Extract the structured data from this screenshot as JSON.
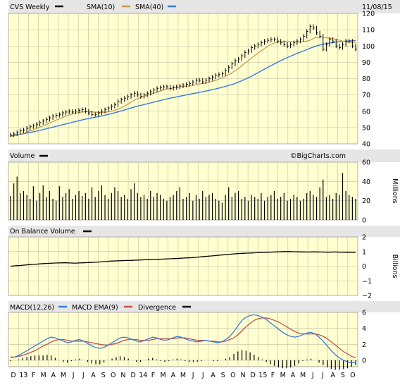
{
  "header": {
    "title": "CVS Weekly",
    "sma_fast": "SMA(10)",
    "sma_slow": "SMA(40)",
    "date": "11/08/15"
  },
  "colors": {
    "plot_bg": "#ffffd0",
    "header_bg": "#e6e6e6",
    "grid": "#bdbda2",
    "price": "#000000",
    "sma_fast": "#c8964b",
    "sma_slow": "#3b79e0",
    "macd": "#3b79e0",
    "signal": "#c0504d"
  },
  "panels": {
    "volume": {
      "title": "Volume",
      "unit": "Millions"
    },
    "obv": {
      "title": "On Balance Volume",
      "unit": "Billions"
    },
    "macd": {
      "title": "MACD(12,26)",
      "ema": "MACD EMA(9)",
      "divergence": "Divergence"
    }
  },
  "watermark": "©BigCharts.com",
  "chart_data": [
    {
      "type": "line",
      "title": "CVS Weekly",
      "ylim": [
        40,
        120
      ],
      "yticks": [
        40,
        50,
        60,
        70,
        80,
        90,
        100,
        110,
        120
      ],
      "series": [
        {
          "name": "Price",
          "values": [
            45.5,
            46,
            47,
            48,
            48.5,
            49.5,
            50.5,
            51,
            52,
            53,
            54,
            55,
            56,
            57,
            57.5,
            58,
            59,
            59.5,
            60,
            59.5,
            60,
            60.5,
            61,
            60,
            59,
            58,
            58,
            59,
            60,
            61,
            62,
            63,
            64,
            66,
            67,
            68,
            69,
            70,
            71,
            70,
            69,
            70,
            71,
            72,
            73,
            74,
            74.5,
            75,
            75,
            74,
            74.5,
            75,
            75.5,
            76,
            76.5,
            77,
            78,
            79,
            79,
            78,
            79,
            80,
            81,
            82,
            82.5,
            83,
            85,
            87,
            89,
            91,
            92,
            94,
            96,
            97,
            99,
            100,
            101,
            102,
            103,
            103.5,
            104,
            104,
            103,
            102,
            101,
            100,
            101,
            102,
            103,
            104,
            106,
            109,
            112,
            111,
            108,
            106,
            98,
            101,
            104,
            103,
            100,
            99,
            101,
            103,
            103,
            100,
            98
          ]
        },
        {
          "name": "SMA(10)",
          "values": [
            44.5,
            44.9,
            45.4,
            45.9,
            46.5,
            47.2,
            47.9,
            48.7,
            49.5,
            50.3,
            51.1,
            52,
            52.9,
            53.8,
            54.7,
            55.5,
            56.3,
            57.1,
            57.8,
            58.4,
            58.9,
            59.3,
            59.6,
            59.7,
            59.7,
            59.5,
            59.4,
            59.3,
            59.3,
            59.4,
            59.7,
            60.1,
            60.7,
            61.5,
            62.4,
            63.5,
            64.7,
            66,
            67.2,
            68,
            68.7,
            69.4,
            70.1,
            70.8,
            71.4,
            72,
            72.6,
            73.2,
            73.8,
            74.1,
            74.4,
            74.7,
            75,
            75.2,
            75.4,
            75.7,
            76.1,
            76.5,
            76.9,
            77.2,
            77.6,
            78.1,
            78.7,
            79.4,
            80.2,
            81,
            82,
            83.1,
            84.4,
            85.8,
            87.3,
            88.9,
            90.5,
            92.1,
            93.7,
            95.2,
            96.7,
            98.1,
            99.5,
            100.7,
            101.6,
            102.3,
            102.7,
            102.9,
            102.8,
            102.7,
            102.6,
            102.5,
            102.5,
            102.6,
            102.9,
            103.5,
            104.4,
            105.3,
            105.4,
            105.6,
            105.1,
            104.7,
            104.5,
            104.1,
            103.6,
            103,
            102.7,
            102.4,
            102.2,
            101.9
          ]
        },
        {
          "name": "SMA(40)",
          "values": [
            45,
            45.3,
            45.6,
            45.9,
            46.2,
            46.6,
            47,
            47.4,
            47.8,
            48.3,
            48.8,
            49.3,
            49.8,
            50.3,
            50.8,
            51.3,
            51.8,
            52.3,
            52.8,
            53.3,
            53.8,
            54.3,
            54.8,
            55.2,
            55.6,
            56,
            56.4,
            56.8,
            57.2,
            57.7,
            58.2,
            58.7,
            59.2,
            59.8,
            60.4,
            61,
            61.6,
            62.2,
            62.8,
            63.3,
            63.8,
            64.3,
            64.8,
            65.3,
            65.8,
            66.3,
            66.8,
            67.3,
            67.8,
            68.2,
            68.6,
            69,
            69.4,
            69.8,
            70.2,
            70.6,
            71,
            71.4,
            71.8,
            72.2,
            72.6,
            73,
            73.5,
            74,
            74.5,
            75,
            75.6,
            76.2,
            76.8,
            77.6,
            78.4,
            79.3,
            80.2,
            81.2,
            82.2,
            83.3,
            84.4,
            85.5,
            86.6,
            87.7,
            88.8,
            89.8,
            90.8,
            91.8,
            92.7,
            93.6,
            94.5,
            95.3,
            96.1,
            96.9,
            97.7,
            98.5,
            99.3,
            100,
            100.6,
            101.1,
            101.5,
            101.8,
            102.1,
            102.4,
            102.6,
            102.8,
            103,
            103.1,
            103.2,
            103.3
          ]
        }
      ]
    },
    {
      "type": "bar",
      "title": "Volume",
      "ylabel": "Millions",
      "ylim": [
        0,
        60
      ],
      "yticks": [
        0,
        20,
        40,
        60
      ],
      "values": [
        25,
        38,
        45,
        28,
        30,
        26,
        22,
        35,
        20,
        28,
        36,
        24,
        30,
        22,
        20,
        35,
        24,
        28,
        32,
        22,
        26,
        30,
        25,
        28,
        22,
        34,
        24,
        30,
        36,
        26,
        22,
        28,
        34,
        30,
        24,
        26,
        22,
        32,
        38,
        28,
        24,
        26,
        22,
        30,
        24,
        28,
        26,
        22,
        20,
        24,
        26,
        30,
        34,
        22,
        24,
        28,
        20,
        26,
        22,
        30,
        24,
        26,
        28,
        22,
        20,
        18,
        26,
        34,
        24,
        28,
        30,
        22,
        24,
        20,
        26,
        24,
        22,
        28,
        20,
        24,
        26,
        30,
        22,
        24,
        28,
        20,
        22,
        26,
        24,
        20,
        22,
        28,
        30,
        26,
        24,
        34,
        42,
        24,
        26,
        22,
        28,
        26,
        49,
        30,
        26,
        24,
        22
      ]
    },
    {
      "type": "line",
      "title": "On Balance Volume",
      "ylabel": "Billions",
      "ylim": [
        -2,
        2
      ],
      "yticks": [
        -2,
        -1,
        0,
        1,
        2
      ],
      "series": [
        {
          "name": "On Balance Volume",
          "values": [
            0,
            0.02,
            0.04,
            0.05,
            0.07,
            0.09,
            0.11,
            0.12,
            0.14,
            0.16,
            0.18,
            0.19,
            0.2,
            0.21,
            0.22,
            0.22,
            0.23,
            0.23,
            0.22,
            0.21,
            0.21,
            0.22,
            0.23,
            0.24,
            0.25,
            0.26,
            0.27,
            0.29,
            0.31,
            0.32,
            0.34,
            0.35,
            0.36,
            0.37,
            0.38,
            0.39,
            0.39,
            0.4,
            0.41,
            0.42,
            0.43,
            0.44,
            0.45,
            0.46,
            0.46,
            0.47,
            0.48,
            0.49,
            0.5,
            0.51,
            0.52,
            0.53,
            0.55,
            0.56,
            0.57,
            0.58,
            0.6,
            0.62,
            0.64,
            0.66,
            0.68,
            0.7,
            0.72,
            0.74,
            0.76,
            0.78,
            0.8,
            0.82,
            0.84,
            0.86,
            0.87,
            0.88,
            0.89,
            0.9,
            0.91,
            0.92,
            0.93,
            0.94,
            0.95,
            0.96,
            0.97,
            0.98,
            0.99,
            1,
            1,
            1,
            0.99,
            0.99,
            0.98,
            0.98,
            0.97,
            0.97,
            0.98,
            0.98,
            0.97,
            0.97,
            0.96,
            0.96,
            0.97,
            0.97,
            0.96,
            0.96,
            0.95,
            0.95,
            0.95,
            0.94
          ]
        }
      ]
    },
    {
      "type": "line",
      "title": "MACD(12,26)",
      "ylim": [
        -0.8,
        6
      ],
      "yticks": [
        0,
        2,
        4,
        6
      ],
      "series": [
        {
          "name": "MACD(12,26)",
          "values": [
            0.3,
            0.4,
            0.6,
            0.9,
            1.2,
            1.5,
            1.8,
            2.1,
            2.4,
            2.7,
            2.9,
            2.8,
            2.6,
            2.4,
            2.2,
            2.3,
            2.5,
            2.6,
            2.4,
            2.1,
            1.8,
            1.6,
            1.5,
            1.6,
            1.9,
            2.2,
            2.5,
            2.8,
            2.9,
            2.8,
            2.6,
            2.4,
            2.3,
            2.5,
            2.7,
            2.9,
            2.8,
            2.6,
            2.5,
            2.6,
            2.8,
            3,
            2.9,
            2.7,
            2.5,
            2.4,
            2.3,
            2.4,
            2.5,
            2.4,
            2.3,
            2.2,
            2.3,
            2.6,
            3,
            3.6,
            4.3,
            5,
            5.4,
            5.6,
            5.7,
            5.6,
            5.4,
            5.1,
            4.7,
            4.3,
            3.9,
            3.5,
            3.2,
            3,
            2.9,
            3,
            3.2,
            3.4,
            3.5,
            3.3,
            2.9,
            2.4,
            1.8,
            1.2,
            0.7,
            0.3,
            0,
            -0.2,
            -0.3,
            -0.3
          ]
        },
        {
          "name": "MACD EMA(9)",
          "values": [
            0.4,
            0.4,
            0.5,
            0.6,
            0.8,
            1,
            1.2,
            1.5,
            1.8,
            2,
            2.3,
            2.5,
            2.6,
            2.6,
            2.5,
            2.4,
            2.4,
            2.4,
            2.4,
            2.3,
            2.2,
            2.1,
            2,
            1.9,
            1.9,
            2,
            2.1,
            2.3,
            2.5,
            2.6,
            2.6,
            2.6,
            2.5,
            2.5,
            2.5,
            2.6,
            2.7,
            2.7,
            2.7,
            2.7,
            2.7,
            2.8,
            2.8,
            2.8,
            2.7,
            2.6,
            2.5,
            2.5,
            2.5,
            2.4,
            2.4,
            2.3,
            2.3,
            2.4,
            2.6,
            2.8,
            3.2,
            3.7,
            4.2,
            4.6,
            5,
            5.2,
            5.3,
            5.3,
            5.2,
            5,
            4.8,
            4.5,
            4.2,
            3.9,
            3.6,
            3.4,
            3.3,
            3.3,
            3.3,
            3.3,
            3.2,
            3,
            2.7,
            2.3,
            1.9,
            1.5,
            1.1,
            0.8,
            0.5,
            0.3
          ]
        }
      ],
      "divergence": [
        -0.1,
        0,
        0.1,
        0.3,
        0.4,
        0.5,
        0.6,
        0.6,
        0.6,
        0.7,
        0.6,
        0.3,
        0,
        -0.2,
        -0.3,
        -0.1,
        0.1,
        0.2,
        0,
        -0.2,
        -0.4,
        -0.5,
        -0.5,
        -0.3,
        0,
        0.2,
        0.4,
        0.5,
        0.4,
        0.2,
        0,
        -0.2,
        -0.2,
        0,
        0.2,
        0.3,
        0.1,
        -0.1,
        -0.2,
        -0.1,
        0.1,
        0.2,
        0.1,
        -0.1,
        -0.2,
        -0.2,
        -0.2,
        -0.1,
        0,
        0,
        -0.1,
        -0.1,
        0,
        0.2,
        0.4,
        0.8,
        1.1,
        1.3,
        1.2,
        1,
        0.7,
        0.4,
        0.1,
        -0.2,
        -0.5,
        -0.7,
        -0.9,
        -1,
        -1,
        -0.9,
        -0.7,
        -0.4,
        -0.1,
        0.1,
        0.2,
        0,
        -0.3,
        -0.6,
        -0.9,
        -1.1,
        -1.2,
        -1.2,
        -1.1,
        -1,
        -0.8,
        -0.6
      ]
    }
  ],
  "x_axis": {
    "labels": [
      "D",
      "13",
      "F",
      "M",
      "A",
      "M",
      "J",
      "J",
      "A",
      "S",
      "O",
      "N",
      "D",
      "14",
      "F",
      "M",
      "A",
      "M",
      "J",
      "J",
      "A",
      "S",
      "O",
      "N",
      "D",
      "15",
      "F",
      "M",
      "A",
      "M",
      "J",
      "J",
      "A",
      "S",
      "O"
    ]
  }
}
